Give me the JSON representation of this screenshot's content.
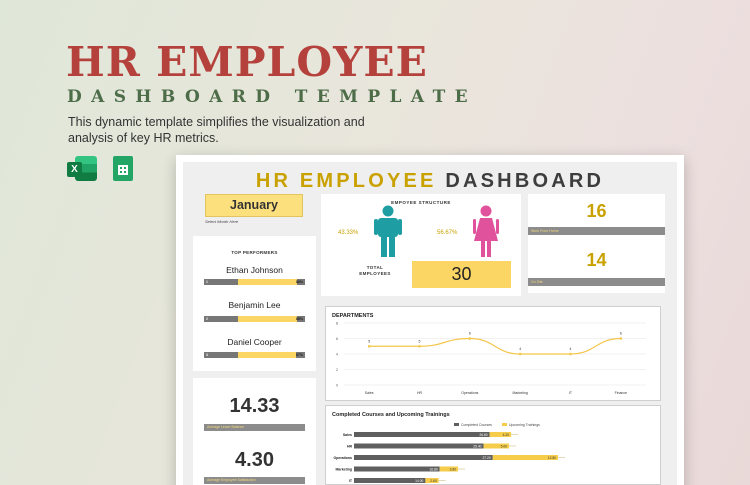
{
  "hero": {
    "title": "HR EMPLOYEE",
    "subtitle": "DASHBOARD TEMPLATE",
    "description": "This dynamic template simplifies the visualization and analysis of key HR metrics."
  },
  "apps": {
    "excel_letter": "X"
  },
  "dashboard": {
    "title_part1": "HR EMPLOYEE",
    "title_part2": "DASHBOARD",
    "accent": "#c9a100",
    "month": "January",
    "month_hint": "Select Month Here",
    "top_performers": {
      "heading": "TOP PERFORMERS",
      "items": [
        {
          "name": "Ethan Johnson",
          "bar_start": "1",
          "score_label": "88%",
          "score": 88
        },
        {
          "name": "Benjamin Lee",
          "bar_start": "2",
          "score_label": "88%",
          "score": 88
        },
        {
          "name": "Daniel Cooper",
          "bar_start": "3",
          "score_label": "87%",
          "score": 87
        }
      ]
    },
    "leave_balance": {
      "value": "14.33",
      "label": "Average Leave Balance"
    },
    "satisfaction": {
      "value": "4.30",
      "label": "Average Employee Satisfaction"
    },
    "employee_structure": {
      "heading": "EMPOYEE STRUCTURE",
      "male_pct": "43.33%",
      "female_pct": "56.67%",
      "total_label_1": "TOTAL",
      "total_label_2": "EMPLOYEES",
      "total": "30",
      "male_color": "#1e9ea3",
      "female_color": "#e0529b"
    },
    "new_joiners": {
      "value": "16",
      "label": "Work From Home"
    },
    "on_site": {
      "value": "14",
      "label": "On Site"
    }
  },
  "chart_data": [
    {
      "type": "line",
      "title": "DEPARTMENTS",
      "categories": [
        "Sales",
        "HR",
        "Operations",
        "Marketing",
        "IT",
        "Finance"
      ],
      "values": [
        5,
        5,
        6,
        4,
        4,
        6
      ],
      "ylim": [
        0,
        8
      ],
      "yticks": [
        "0",
        "2",
        "4",
        "6",
        "8"
      ],
      "grid": true
    },
    {
      "type": "bar",
      "title": "Completed Courses and Upcoming Trainings",
      "orientation": "horizontal",
      "categories": [
        "Sales",
        "HR",
        "Operations",
        "Marketing",
        "IT"
      ],
      "series": [
        {
          "name": "Completed Courses",
          "color": "#5f5f5f",
          "values": [
            26.6,
            25.4,
            27.2,
            16.8,
            14.0
          ],
          "labels": [
            "26.60",
            "25.40",
            "27.20",
            "16.80",
            "14.00"
          ]
        },
        {
          "name": "Upcoming Trainings",
          "color": "#f6cd4a",
          "values": [
            4.2,
            5.0,
            12.8,
            3.6,
            2.6
          ],
          "labels": [
            "4.20",
            "5.00",
            "12.80",
            "3.60",
            "2.60"
          ]
        }
      ],
      "legend": "top"
    }
  ]
}
